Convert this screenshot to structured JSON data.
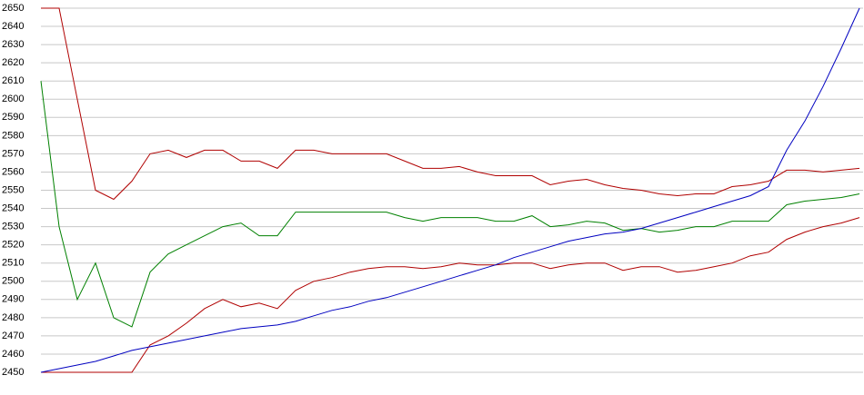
{
  "chart_data": {
    "type": "line",
    "ylim": [
      2450,
      2650
    ],
    "yticks": [
      2450,
      2460,
      2470,
      2480,
      2490,
      2500,
      2510,
      2520,
      2530,
      2540,
      2550,
      2560,
      2570,
      2580,
      2590,
      2600,
      2610,
      2620,
      2630,
      2640,
      2650
    ],
    "grid": true,
    "series": [
      {
        "color": "#b00000",
        "values": [
          2650,
          2650,
          2600,
          2550,
          2545,
          2555,
          2570,
          2572,
          2568,
          2572,
          2572,
          2566,
          2566,
          2562,
          2572,
          2572,
          2570,
          2570,
          2570,
          2570,
          2566,
          2562,
          2562,
          2563,
          2560,
          2558,
          2558,
          2558,
          2553,
          2555,
          2556,
          2553,
          2551,
          2550,
          2548,
          2547,
          2548,
          2548,
          2552,
          2553,
          2555,
          2561,
          2561,
          2560,
          2561,
          2562
        ]
      },
      {
        "color": "#008000",
        "values": [
          2610,
          2530,
          2490,
          2510,
          2480,
          2475,
          2505,
          2515,
          2520,
          2525,
          2530,
          2532,
          2525,
          2525,
          2538,
          2538,
          2538,
          2538,
          2538,
          2538,
          2535,
          2533,
          2535,
          2535,
          2535,
          2533,
          2533,
          2536,
          2530,
          2531,
          2533,
          2532,
          2528,
          2529,
          2527,
          2528,
          2530,
          2530,
          2533,
          2533,
          2533,
          2542,
          2544,
          2545,
          2546,
          2548
        ]
      },
      {
        "color": "#b00000",
        "values": [
          2450,
          2450,
          2450,
          2450,
          2450,
          2450,
          2465,
          2470,
          2477,
          2485,
          2490,
          2486,
          2488,
          2485,
          2495,
          2500,
          2502,
          2505,
          2507,
          2508,
          2508,
          2507,
          2508,
          2510,
          2509,
          2509,
          2510,
          2510,
          2507,
          2509,
          2510,
          2510,
          2506,
          2508,
          2508,
          2505,
          2506,
          2508,
          2510,
          2514,
          2516,
          2523,
          2527,
          2530,
          2532,
          2535
        ]
      },
      {
        "color": "#0000c0",
        "values": [
          2450,
          2452,
          2454,
          2456,
          2459,
          2462,
          2464,
          2466,
          2468,
          2470,
          2472,
          2474,
          2475,
          2476,
          2478,
          2481,
          2484,
          2486,
          2489,
          2491,
          2494,
          2497,
          2500,
          2503,
          2506,
          2509,
          2513,
          2516,
          2519,
          2522,
          2524,
          2526,
          2527,
          2529,
          2532,
          2535,
          2538,
          2541,
          2544,
          2547,
          2552,
          2572,
          2588,
          2607,
          2628,
          2650
        ]
      }
    ]
  }
}
